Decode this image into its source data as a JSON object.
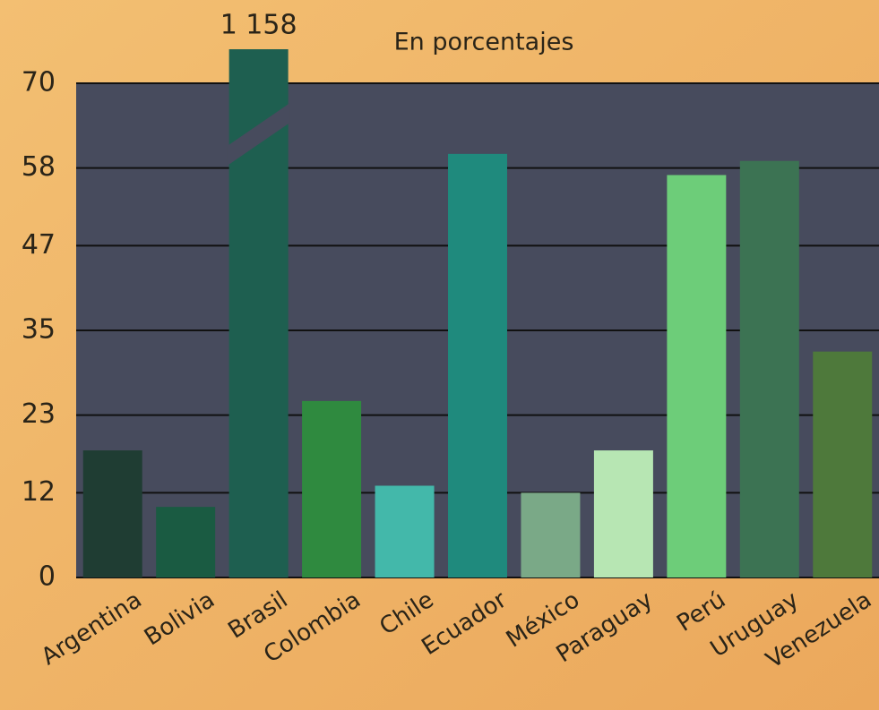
{
  "chart_data": {
    "type": "bar",
    "subtitle": "En porcentajes",
    "categories": [
      "Argentina",
      "Bolivia",
      "Brasil",
      "Colombia",
      "Chile",
      "Ecuador",
      "México",
      "Paraguay",
      "Perú",
      "Uruguay",
      "Venezuela"
    ],
    "values": [
      18,
      10,
      1158,
      25,
      13,
      60,
      12,
      18,
      57,
      59,
      32
    ],
    "value_labels": [
      null,
      null,
      "1 158",
      null,
      null,
      null,
      null,
      null,
      null,
      null,
      null
    ],
    "colors": [
      "#1f3d33",
      "#1a5b42",
      "#1e5f50",
      "#2f8a3f",
      "#43b8aa",
      "#1f8a7d",
      "#7aa987",
      "#b7e6b3",
      "#6dcd79",
      "#3c7353",
      "#4e793b"
    ],
    "ylim": [
      0,
      70
    ],
    "yticks": [
      0,
      12,
      23,
      35,
      47,
      58,
      70
    ],
    "grid": true
  }
}
